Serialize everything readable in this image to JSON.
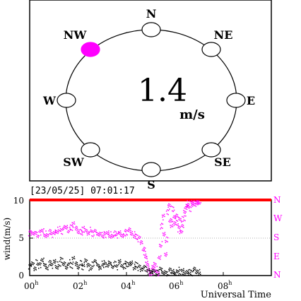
{
  "compass": {
    "directions": [
      {
        "label": "N",
        "active": false
      },
      {
        "label": "NE",
        "active": false
      },
      {
        "label": "E",
        "active": false
      },
      {
        "label": "SE",
        "active": false
      },
      {
        "label": "S",
        "active": false
      },
      {
        "label": "SW",
        "active": false
      },
      {
        "label": "W",
        "active": false
      },
      {
        "label": "NW",
        "active": true
      }
    ],
    "current_direction": "NW",
    "speed_value": "1.4",
    "speed_unit": "m/s",
    "active_color": "#ff00ff"
  },
  "timestamp": "[23/05/25] 07:01:17",
  "chart_data": {
    "type": "scatter",
    "ylabel": "wind(m/s)",
    "xlabel": "Universal Time",
    "x_ticks": [
      "00",
      "02",
      "04",
      "06",
      "08"
    ],
    "x_tick_suffix": "h",
    "xlim": [
      0,
      10
    ],
    "ylim": [
      0,
      10
    ],
    "y_ticks": [
      "0",
      "5",
      "10"
    ],
    "right_ticks": [
      "N",
      "W",
      "S",
      "E",
      "N"
    ],
    "threshold_line": {
      "value": 10,
      "color": "#ff0000"
    },
    "series": [
      {
        "color": "#ff00ff",
        "points": [
          [
            0.0,
            5.7
          ],
          [
            0.1,
            5.6
          ],
          [
            0.2,
            5.8
          ],
          [
            0.3,
            5.5
          ],
          [
            0.4,
            5.7
          ],
          [
            0.5,
            5.9
          ],
          [
            0.6,
            5.4
          ],
          [
            0.7,
            5.6
          ],
          [
            0.8,
            5.8
          ],
          [
            0.9,
            5.5
          ],
          [
            1.0,
            5.7
          ],
          [
            1.1,
            6.0
          ],
          [
            1.2,
            6.2
          ],
          [
            1.3,
            5.9
          ],
          [
            1.4,
            6.3
          ],
          [
            1.5,
            6.5
          ],
          [
            1.6,
            6.1
          ],
          [
            1.7,
            6.4
          ],
          [
            1.8,
            6.8
          ],
          [
            1.9,
            6.3
          ],
          [
            2.0,
            6.0
          ],
          [
            2.1,
            5.8
          ],
          [
            2.2,
            6.2
          ],
          [
            2.3,
            5.9
          ],
          [
            2.4,
            5.7
          ],
          [
            2.5,
            6.1
          ],
          [
            2.6,
            5.6
          ],
          [
            2.7,
            5.8
          ],
          [
            2.8,
            5.5
          ],
          [
            2.9,
            5.7
          ],
          [
            3.0,
            5.5
          ],
          [
            3.1,
            5.4
          ],
          [
            3.2,
            5.6
          ],
          [
            3.3,
            5.3
          ],
          [
            3.4,
            5.5
          ],
          [
            3.5,
            5.6
          ],
          [
            3.6,
            5.4
          ],
          [
            3.7,
            5.7
          ],
          [
            3.8,
            5.5
          ],
          [
            3.9,
            5.6
          ],
          [
            4.0,
            5.8
          ],
          [
            4.1,
            6.0
          ],
          [
            4.2,
            5.7
          ],
          [
            4.3,
            5.5
          ],
          [
            4.4,
            5.2
          ],
          [
            4.5,
            4.9
          ],
          [
            4.6,
            4.4
          ],
          [
            4.7,
            3.7
          ],
          [
            4.75,
            3.0
          ],
          [
            4.8,
            2.2
          ],
          [
            4.85,
            1.4
          ],
          [
            4.9,
            0.9
          ],
          [
            4.95,
            0.5
          ],
          [
            5.0,
            0.3
          ],
          [
            5.05,
            0.6
          ],
          [
            5.1,
            1.1
          ],
          [
            5.15,
            1.7
          ],
          [
            5.2,
            0.9
          ],
          [
            5.25,
            0.4
          ],
          [
            5.3,
            0.2
          ],
          [
            5.35,
            2.5
          ],
          [
            5.4,
            4.2
          ],
          [
            5.45,
            6.6
          ],
          [
            5.5,
            7.8
          ],
          [
            5.55,
            5.5
          ],
          [
            5.6,
            3.0
          ],
          [
            5.65,
            4.8
          ],
          [
            5.7,
            8.5
          ],
          [
            5.75,
            9.2
          ],
          [
            5.8,
            7.4
          ],
          [
            5.85,
            6.8
          ],
          [
            5.9,
            8.9
          ],
          [
            5.95,
            7.6
          ],
          [
            6.0,
            6.9
          ],
          [
            6.05,
            8.1
          ],
          [
            6.1,
            7.0
          ],
          [
            6.15,
            6.2
          ],
          [
            6.2,
            7.4
          ],
          [
            6.25,
            5.9
          ],
          [
            6.3,
            6.8
          ],
          [
            6.35,
            7.6
          ],
          [
            6.4,
            8.3
          ],
          [
            6.45,
            9.0
          ],
          [
            6.5,
            9.4
          ],
          [
            6.55,
            9.7
          ],
          [
            6.6,
            8.9
          ],
          [
            6.65,
            9.9
          ],
          [
            6.7,
            9.5
          ],
          [
            6.75,
            9.8
          ],
          [
            6.8,
            9.6
          ],
          [
            6.85,
            9.9
          ],
          [
            6.9,
            9.7
          ],
          [
            6.95,
            9.9
          ],
          [
            7.0,
            9.8
          ]
        ]
      },
      {
        "color": "#000000",
        "points": [
          [
            0.0,
            1.3
          ],
          [
            0.1,
            1.6
          ],
          [
            0.2,
            1.1
          ],
          [
            0.3,
            1.8
          ],
          [
            0.4,
            1.4
          ],
          [
            0.5,
            2.0
          ],
          [
            0.6,
            1.5
          ],
          [
            0.7,
            1.2
          ],
          [
            0.8,
            1.7
          ],
          [
            0.9,
            1.4
          ],
          [
            1.0,
            1.9
          ],
          [
            1.1,
            1.3
          ],
          [
            1.2,
            1.6
          ],
          [
            1.3,
            2.1
          ],
          [
            1.4,
            1.5
          ],
          [
            1.5,
            1.2
          ],
          [
            1.6,
            1.8
          ],
          [
            1.7,
            1.4
          ],
          [
            1.8,
            2.2
          ],
          [
            1.9,
            1.6
          ],
          [
            2.0,
            1.3
          ],
          [
            2.1,
            1.7
          ],
          [
            2.2,
            1.2
          ],
          [
            2.3,
            1.9
          ],
          [
            2.4,
            1.5
          ],
          [
            2.5,
            1.1
          ],
          [
            2.6,
            1.6
          ],
          [
            2.7,
            1.8
          ],
          [
            2.8,
            1.4
          ],
          [
            2.9,
            1.2
          ],
          [
            3.0,
            1.7
          ],
          [
            3.1,
            1.5
          ],
          [
            3.2,
            1.3
          ],
          [
            3.3,
            1.8
          ],
          [
            3.4,
            1.4
          ],
          [
            3.5,
            1.6
          ],
          [
            3.6,
            1.2
          ],
          [
            3.7,
            1.9
          ],
          [
            3.8,
            1.5
          ],
          [
            3.9,
            1.3
          ],
          [
            4.0,
            1.6
          ],
          [
            4.1,
            1.4
          ],
          [
            4.2,
            1.8
          ],
          [
            4.3,
            1.2
          ],
          [
            4.4,
            1.5
          ],
          [
            4.5,
            1.1
          ],
          [
            4.6,
            0.8
          ],
          [
            4.7,
            1.3
          ],
          [
            4.8,
            0.9
          ],
          [
            4.9,
            0.6
          ],
          [
            5.0,
            0.4
          ],
          [
            5.1,
            0.7
          ],
          [
            5.2,
            0.3
          ],
          [
            5.3,
            0.5
          ],
          [
            5.4,
            0.8
          ],
          [
            5.5,
            0.4
          ],
          [
            5.6,
            0.6
          ],
          [
            5.7,
            0.3
          ],
          [
            5.8,
            0.7
          ],
          [
            5.9,
            0.5
          ],
          [
            6.0,
            0.4
          ],
          [
            6.1,
            0.8
          ],
          [
            6.2,
            0.5
          ],
          [
            6.3,
            0.6
          ],
          [
            6.4,
            0.3
          ],
          [
            6.5,
            0.7
          ],
          [
            6.6,
            0.5
          ],
          [
            6.7,
            0.4
          ],
          [
            6.8,
            0.8
          ],
          [
            6.9,
            0.6
          ],
          [
            7.0,
            0.5
          ]
        ]
      }
    ]
  }
}
